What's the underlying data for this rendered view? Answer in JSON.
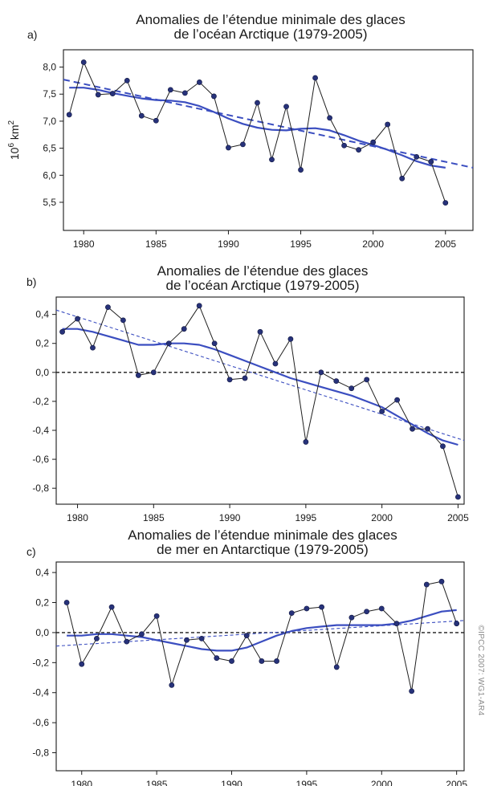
{
  "credit": "©IPCC 2007: WG1-AR4",
  "chart_data": [
    {
      "type": "line",
      "panel_label": "a)",
      "title_lines": [
        "Anomalies de l’étendue minimale des glaces",
        "de l’océan Arctique (1979-2005)"
      ],
      "ylabel": "10 6 km2",
      "ylabel_base": "10",
      "ylabel_sup": "6",
      "ylabel_unit": " km",
      "ylabel_unit_sup": "2",
      "xlim": [
        1978.6,
        2006.9
      ],
      "ylim": [
        4.98,
        8.32
      ],
      "xticks": [
        1980,
        1985,
        1990,
        1995,
        2000,
        2005
      ],
      "yticks": [
        5.5,
        6.0,
        6.5,
        7.0,
        7.5,
        8.0
      ],
      "ytick_labels": [
        "5,5",
        "6,0",
        "6,5",
        "7,0",
        "7,5",
        "8,0"
      ],
      "zero_line": false,
      "series": [
        {
          "x": [
            1979,
            1980,
            1981,
            1982,
            1983,
            1984,
            1985,
            1986,
            1987,
            1988,
            1989,
            1990,
            1991,
            1992,
            1993,
            1994,
            1995,
            1996,
            1997,
            1998,
            1999,
            2000,
            2001,
            2002,
            2003,
            2004,
            2005
          ],
          "values": [
            7.12,
            8.09,
            7.49,
            7.51,
            7.75,
            7.1,
            7.01,
            7.58,
            7.52,
            7.72,
            7.46,
            6.51,
            6.57,
            7.34,
            6.29,
            7.27,
            6.1,
            7.8,
            7.06,
            6.55,
            6.47,
            6.61,
            6.94,
            5.94,
            6.34,
            6.25,
            5.49
          ]
        },
        {
          "x": [
            1979,
            1980,
            1981,
            1982,
            1983,
            1984,
            1985,
            1986,
            1987,
            1988,
            1989,
            1990,
            1991,
            1992,
            1993,
            1994,
            1995,
            1996,
            1997,
            1998,
            1999,
            2000,
            2001,
            2002,
            2003,
            2004,
            2005
          ],
          "values": [
            7.62,
            7.62,
            7.58,
            7.52,
            7.47,
            7.42,
            7.39,
            7.38,
            7.35,
            7.28,
            7.17,
            7.05,
            6.95,
            6.88,
            6.84,
            6.83,
            6.86,
            6.87,
            6.83,
            6.74,
            6.64,
            6.56,
            6.47,
            6.37,
            6.26,
            6.18,
            6.14
          ]
        },
        {
          "x": [
            1978.6,
            2006.9
          ],
          "values": [
            7.77,
            6.14
          ]
        }
      ]
    },
    {
      "type": "line",
      "panel_label": "b)",
      "title_lines": [
        "Anomalies de l’étendue des glaces",
        "de l’océan Arctique (1979-2005)"
      ],
      "xlim": [
        1978.6,
        2005.4
      ],
      "ylim": [
        -0.91,
        0.52
      ],
      "xticks": [
        1980,
        1985,
        1990,
        1995,
        2000,
        2005
      ],
      "yticks": [
        -0.8,
        -0.6,
        -0.4,
        -0.2,
        0.0,
        0.2,
        0.4
      ],
      "ytick_labels": [
        "-0,8",
        "-0,6",
        "-0,4",
        "-0,2",
        "0,0",
        "0,2",
        "0,4"
      ],
      "zero_line": true,
      "series": [
        {
          "x": [
            1979,
            1980,
            1981,
            1982,
            1983,
            1984,
            1985,
            1986,
            1987,
            1988,
            1989,
            1990,
            1991,
            1992,
            1993,
            1994,
            1995,
            1996,
            1997,
            1998,
            1999,
            2000,
            2001,
            2002,
            2003,
            2004,
            2005
          ],
          "values": [
            0.28,
            0.37,
            0.17,
            0.45,
            0.36,
            -0.02,
            0.0,
            0.2,
            0.3,
            0.46,
            0.2,
            -0.05,
            -0.04,
            0.28,
            0.06,
            0.23,
            -0.48,
            0.0,
            -0.06,
            -0.11,
            -0.05,
            -0.27,
            -0.19,
            -0.39,
            -0.39,
            -0.51,
            -0.86
          ]
        },
        {
          "x": [
            1979,
            1980,
            1981,
            1982,
            1983,
            1984,
            1985,
            1986,
            1987,
            1988,
            1989,
            1990,
            1991,
            1992,
            1993,
            1994,
            1995,
            1996,
            1997,
            1998,
            1999,
            2000,
            2001,
            2002,
            2003,
            2004,
            2005
          ],
          "values": [
            0.3,
            0.3,
            0.28,
            0.25,
            0.22,
            0.19,
            0.19,
            0.2,
            0.2,
            0.19,
            0.16,
            0.12,
            0.08,
            0.04,
            0.0,
            -0.04,
            -0.07,
            -0.1,
            -0.13,
            -0.16,
            -0.2,
            -0.24,
            -0.3,
            -0.36,
            -0.42,
            -0.47,
            -0.5
          ]
        },
        {
          "x": [
            1978.6,
            2005.4
          ],
          "values": [
            0.43,
            -0.47
          ]
        }
      ]
    },
    {
      "type": "line",
      "panel_label": "c)",
      "title_lines": [
        "Anomalies de l’étendue minimale des glaces",
        "de mer en Antarctique (1979-2005)"
      ],
      "xlim": [
        1978.3,
        2005.5
      ],
      "ylim": [
        -0.92,
        0.47
      ],
      "xticks": [
        1980,
        1985,
        1990,
        1995,
        2000,
        2005
      ],
      "yticks": [
        -0.8,
        -0.6,
        -0.4,
        -0.2,
        0.0,
        0.2,
        0.4
      ],
      "ytick_labels": [
        "-0,8",
        "-0,6",
        "-0,4",
        "-0,2",
        "0,0",
        "0,2",
        "0,4"
      ],
      "zero_line": true,
      "series": [
        {
          "x": [
            1979,
            1980,
            1981,
            1982,
            1983,
            1984,
            1985,
            1986,
            1987,
            1988,
            1989,
            1990,
            1991,
            1992,
            1993,
            1994,
            1995,
            1996,
            1997,
            1998,
            1999,
            2000,
            2001,
            2002,
            2003,
            2004,
            2005
          ],
          "values": [
            0.2,
            -0.21,
            -0.04,
            0.17,
            -0.06,
            -0.01,
            0.11,
            -0.35,
            -0.05,
            -0.04,
            -0.17,
            -0.19,
            -0.02,
            -0.19,
            -0.19,
            0.13,
            0.16,
            0.17,
            -0.23,
            0.1,
            0.14,
            0.16,
            0.06,
            -0.39,
            0.32,
            0.34,
            0.06
          ]
        },
        {
          "x": [
            1979,
            1980,
            1981,
            1982,
            1983,
            1984,
            1985,
            1986,
            1987,
            1988,
            1989,
            1990,
            1991,
            1992,
            1993,
            1994,
            1995,
            1996,
            1997,
            1998,
            1999,
            2000,
            2001,
            2002,
            2003,
            2004,
            2005
          ],
          "values": [
            -0.02,
            -0.02,
            -0.01,
            -0.01,
            -0.02,
            -0.03,
            -0.05,
            -0.07,
            -0.09,
            -0.11,
            -0.12,
            -0.12,
            -0.1,
            -0.06,
            -0.02,
            0.01,
            0.03,
            0.04,
            0.05,
            0.05,
            0.05,
            0.05,
            0.06,
            0.08,
            0.11,
            0.14,
            0.15
          ]
        },
        {
          "x": [
            1978.3,
            2005.5
          ],
          "values": [
            -0.09,
            0.08
          ]
        }
      ]
    }
  ],
  "colors": {
    "observed": "#1f1f1f",
    "marker": "#27327a",
    "smooth": "#3b4ec0",
    "trend": "#3b4ec0",
    "zero": "#1a1a1a",
    "axis": "#1a1a1a"
  }
}
